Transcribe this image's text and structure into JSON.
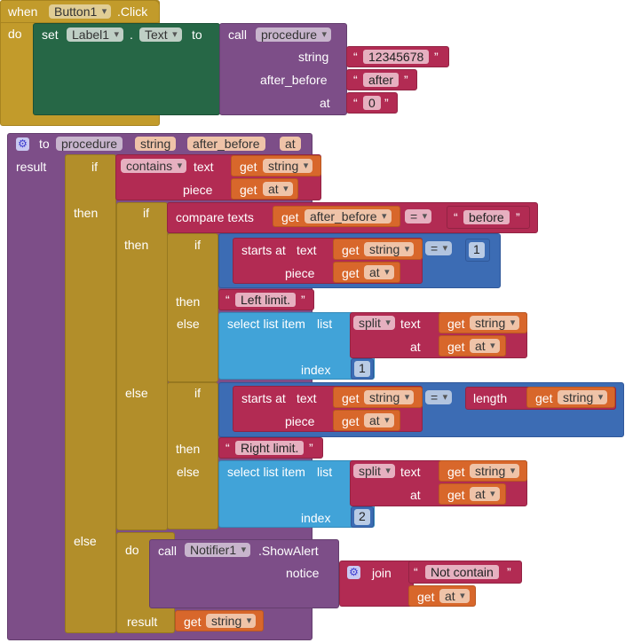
{
  "event": {
    "when": "when",
    "component": "Button1",
    "event_name": ".Click",
    "do": "do"
  },
  "set_stmt": {
    "set": "set",
    "component": "Label1",
    "dot": ".",
    "property": "Text",
    "to": "to"
  },
  "call_proc": {
    "call": "call",
    "procedure": "procedure",
    "arg1_label": "string",
    "arg1_value": "12345678",
    "arg2_label": "after_before",
    "arg2_value": "after",
    "arg3_label": "at",
    "arg3_value": "0"
  },
  "proc_def": {
    "to": "to",
    "name": "procedure",
    "params": [
      "string",
      "after_before",
      "at"
    ],
    "result": "result"
  },
  "if1": {
    "if": "if",
    "contains": "contains",
    "text_label": "text",
    "piece_label": "piece",
    "get": "get",
    "text_var": "string",
    "piece_var": "at",
    "then": "then",
    "else": "else"
  },
  "if2": {
    "if": "if",
    "compare": "compare texts",
    "get": "get",
    "var": "after_before",
    "op": "=",
    "literal": "before",
    "then": "then",
    "else": "else"
  },
  "if3": {
    "if": "if",
    "starts_at": "starts at",
    "text_label": "text",
    "piece_label": "piece",
    "get": "get",
    "text_var": "string",
    "piece_var": "at",
    "op": "=",
    "number": "1",
    "then": "then",
    "then_value": "Left limit.",
    "else": "else",
    "select": "select list item",
    "list_label": "list",
    "split": "split",
    "text2": "text",
    "at_label": "at",
    "index_label": "index",
    "index": "1"
  },
  "if4": {
    "if": "if",
    "starts_at": "starts at",
    "text_label": "text",
    "piece_label": "piece",
    "get": "get",
    "text_var": "string",
    "piece_var": "at",
    "op": "=",
    "length": "length",
    "then": "then",
    "then_value": "Right limit.",
    "else": "else",
    "select": "select list item",
    "list_label": "list",
    "split": "split",
    "text2": "text",
    "at_label": "at",
    "index_label": "index",
    "index": "2"
  },
  "else_do": {
    "else": "else",
    "do": "do",
    "call": "call",
    "component": "Notifier1",
    "method": ".ShowAlert",
    "notice_label": "notice",
    "join": "join",
    "join_text": "Not contain",
    "get": "get",
    "var": "at",
    "result": "result",
    "result_var": "string"
  }
}
